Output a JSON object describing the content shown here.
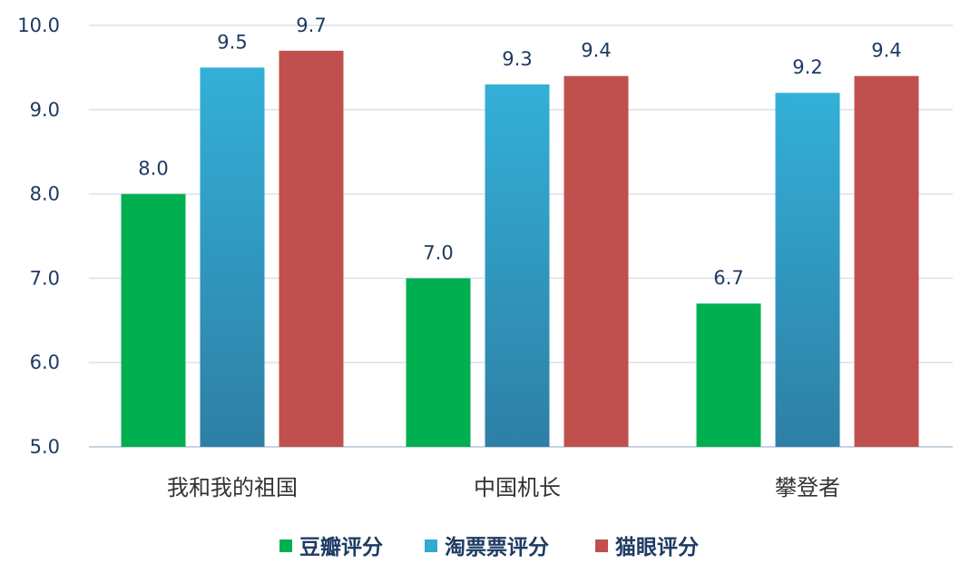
{
  "chart_data": {
    "type": "bar",
    "categories": [
      "我和我的祖国",
      "中国机长",
      "攀登者"
    ],
    "series": [
      {
        "name": "豆瓣评分",
        "values": [
          8.0,
          7.0,
          6.7
        ],
        "labels": [
          "8.0",
          "7.0",
          "6.7"
        ],
        "color": "#00b050"
      },
      {
        "name": "淘票票评分",
        "values": [
          9.5,
          9.3,
          9.2
        ],
        "labels": [
          "9.5",
          "9.3",
          "9.2"
        ],
        "color": "#31a9d2",
        "color_bottom": "#2e80a6"
      },
      {
        "name": "猫眼评分",
        "values": [
          9.7,
          9.4,
          9.4
        ],
        "labels": [
          "9.7",
          "9.4",
          "9.4"
        ],
        "color": "#c0504d"
      }
    ],
    "ylim": [
      5.0,
      10.0
    ],
    "yticks": [
      5.0,
      6.0,
      7.0,
      8.0,
      9.0,
      10.0
    ],
    "ytick_labels": [
      "5.0",
      "6.0",
      "7.0",
      "8.0",
      "9.0",
      "10.0"
    ],
    "grid": true,
    "legend": "bottom"
  }
}
